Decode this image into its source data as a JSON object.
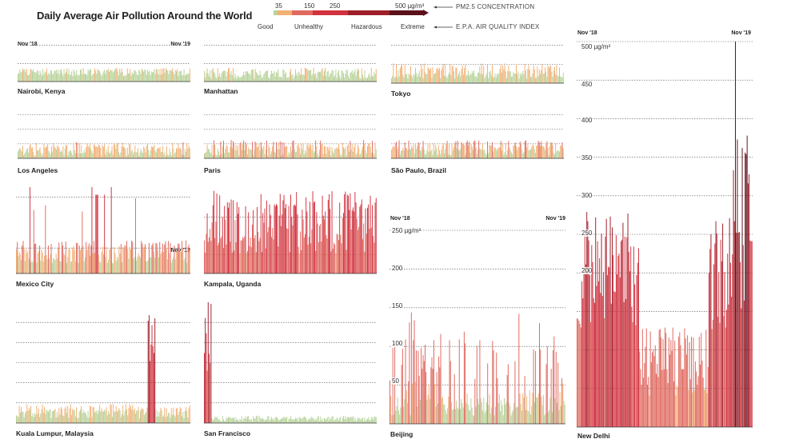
{
  "title": "Daily Average Air Pollution Around the World",
  "legend": {
    "pm_ticks": [
      "35",
      "150",
      "250",
      "500 µg/m³"
    ],
    "categories": [
      "Good",
      "Unhealthy",
      "Hazardous",
      "Extreme"
    ],
    "pm_label": "PM2.5 CONCENTRATION",
    "aqi_label": "E.P.A. AIR QUALITY INDEX",
    "colors": {
      "good": "#b8d39b",
      "moderate": "#f3b073",
      "unhealthy": "#e06a60",
      "very_unhealthy": "#d1323f",
      "hazardous": "#9e1f2a",
      "extreme": "#5c1019"
    }
  },
  "chart_data": [
    {
      "id": "nairobi",
      "type": "bar",
      "city": "Nairobi, Kenya",
      "x_start": "Nov '18",
      "x_end": "Nov '19",
      "ylim": [
        0,
        500
      ],
      "y_gridlines": [
        50,
        100
      ],
      "profile": "nairobi"
    },
    {
      "id": "manhattan",
      "type": "bar",
      "city": "Manhattan",
      "x_start": "",
      "x_end": "",
      "ylim": [
        0,
        500
      ],
      "y_gridlines": [
        50,
        100
      ],
      "profile": "manhattan"
    },
    {
      "id": "tokyo",
      "type": "bar",
      "city": "Tokyo",
      "x_start": "",
      "x_end": "",
      "ylim": [
        0,
        500
      ],
      "y_gridlines": [
        50,
        100
      ],
      "profile": "tokyo"
    },
    {
      "id": "losangeles",
      "type": "bar",
      "city": "Los Angeles",
      "x_start": "",
      "x_end": "",
      "ylim": [
        0,
        500
      ],
      "y_gridlines": [
        50,
        100,
        150
      ],
      "profile": "losangeles"
    },
    {
      "id": "paris",
      "type": "bar",
      "city": "Paris",
      "x_start": "",
      "x_end": "",
      "ylim": [
        0,
        500
      ],
      "y_gridlines": [
        50,
        100,
        150
      ],
      "profile": "paris"
    },
    {
      "id": "saopaulo",
      "type": "bar",
      "city": "São Paulo, Brazil",
      "x_start": "",
      "x_end": "",
      "ylim": [
        0,
        500
      ],
      "y_gridlines": [
        50,
        100,
        150
      ],
      "profile": "saopaulo"
    },
    {
      "id": "mexico",
      "type": "bar",
      "city": "Mexico City",
      "x_start": "",
      "x_end": "Nov '19",
      "ylim": [
        0,
        500
      ],
      "y_gridlines": [
        50,
        150
      ],
      "profile": "mexico"
    },
    {
      "id": "kampala",
      "type": "bar",
      "city": "Kampala, Uganda",
      "x_start": "",
      "x_end": "",
      "ylim": [
        0,
        500
      ],
      "y_gridlines": [
        50,
        150
      ],
      "profile": "kampala"
    },
    {
      "id": "kuala",
      "type": "bar",
      "city": "Kuala Lumpur, Malaysia",
      "x_start": "",
      "x_end": "",
      "ylim": [
        0,
        500
      ],
      "y_gridlines": [
        50,
        100,
        150,
        200,
        250
      ],
      "profile": "kuala"
    },
    {
      "id": "sanfrancisco",
      "type": "bar",
      "city": "San Francisco",
      "x_start": "",
      "x_end": "",
      "ylim": [
        0,
        500
      ],
      "y_gridlines": [
        50,
        100,
        150,
        200,
        250
      ],
      "profile": "sanfrancisco"
    },
    {
      "id": "beijing",
      "type": "bar",
      "city": "Beijing",
      "x_start": "Nov '18",
      "x_end": "Nov '19",
      "ylim": [
        0,
        250
      ],
      "y_gridlines": [
        50,
        100,
        150,
        200,
        250
      ],
      "y_tick_labels": [
        "250 µg/m³",
        "200",
        "150",
        "100",
        "50"
      ],
      "profile": "beijing"
    },
    {
      "id": "delhi",
      "type": "bar",
      "city": "New Delhi",
      "x_start": "Nov '18",
      "x_end": "Nov '19",
      "ylim": [
        0,
        500
      ],
      "y_gridlines": [
        50,
        100,
        150,
        200,
        250,
        300,
        350,
        400,
        450,
        500
      ],
      "y_tick_labels": [
        "500 µg/m³",
        "450",
        "400",
        "350",
        "300",
        "250",
        "200"
      ],
      "profile": "delhi"
    }
  ]
}
